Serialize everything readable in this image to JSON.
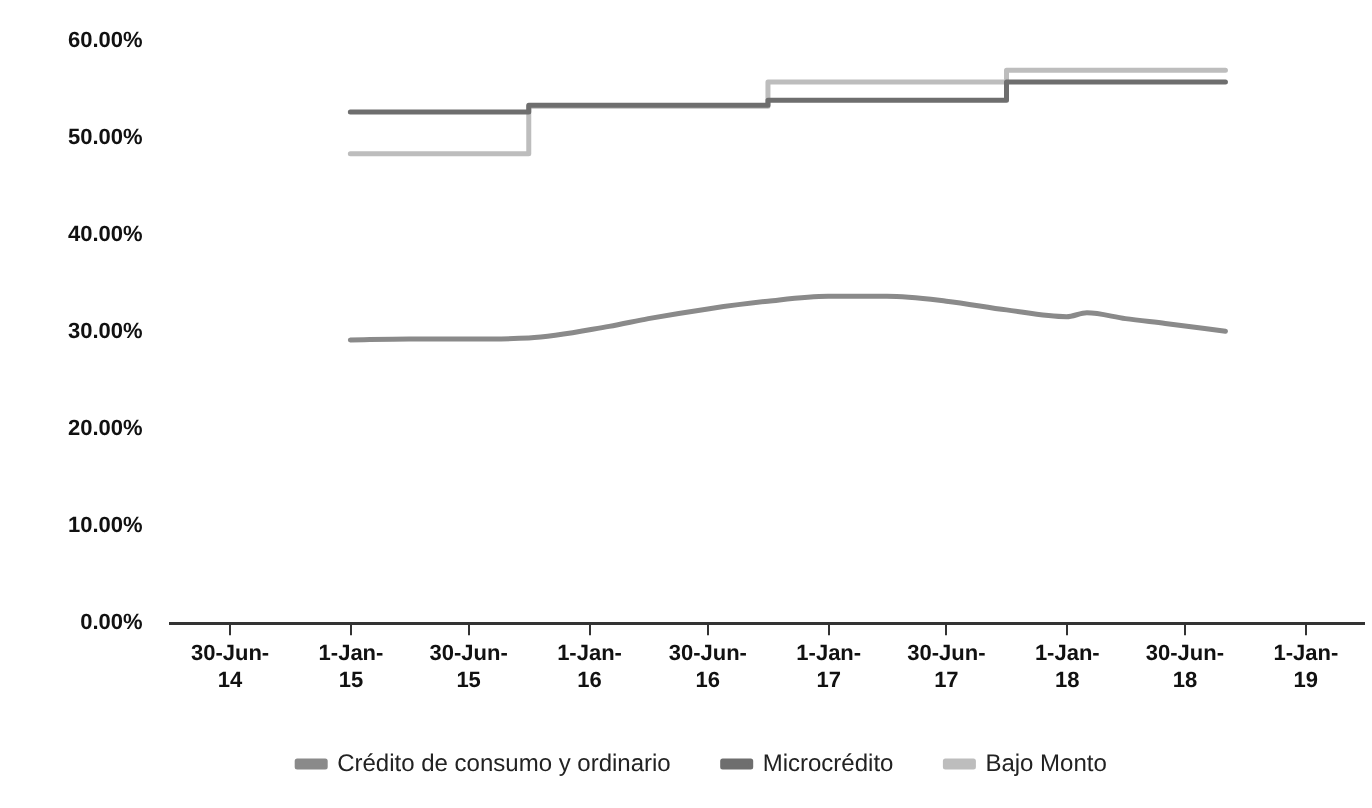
{
  "chart_data": {
    "type": "line",
    "xlim": [
      "2014-03-31",
      "2019-03-31"
    ],
    "xticks": [
      {
        "value": "2014-06-30",
        "label": "30-Jun-14"
      },
      {
        "value": "2015-01-01",
        "label": "1-Jan-15"
      },
      {
        "value": "2015-06-30",
        "label": "30-Jun-15"
      },
      {
        "value": "2016-01-01",
        "label": "1-Jan-16"
      },
      {
        "value": "2016-06-30",
        "label": "30-Jun-16"
      },
      {
        "value": "2017-01-01",
        "label": "1-Jan-17"
      },
      {
        "value": "2017-06-30",
        "label": "30-Jun-17"
      },
      {
        "value": "2018-01-01",
        "label": "1-Jan-18"
      },
      {
        "value": "2018-06-30",
        "label": "30-Jun-18"
      },
      {
        "value": "2019-01-01",
        "label": "1-Jan-19"
      }
    ],
    "ylim": [
      0,
      60
    ],
    "yticks": [
      {
        "value": 0,
        "label": "0.00%"
      },
      {
        "value": 10,
        "label": "10.00%"
      },
      {
        "value": 20,
        "label": "20.00%"
      },
      {
        "value": 30,
        "label": "30.00%"
      },
      {
        "value": 40,
        "label": "40.00%"
      },
      {
        "value": 50,
        "label": "50.00%"
      },
      {
        "value": 60,
        "label": "60.00%"
      }
    ],
    "grid": false,
    "legend": "bottom",
    "marker": "none",
    "line_style": "solid",
    "series": [
      {
        "name": "Crédito de consumo y ordinario",
        "color": "#8a8a8a",
        "x": [
          "2014-12-31",
          "2015-03-31",
          "2015-06-30",
          "2015-09-30",
          "2016-01-31",
          "2016-03-31",
          "2016-06-30",
          "2016-09-30",
          "2016-12-31",
          "2017-03-31",
          "2017-06-30",
          "2017-09-30",
          "2017-12-31",
          "2018-01-31",
          "2018-03-31",
          "2018-05-31",
          "2018-08-31"
        ],
        "values": [
          29.2,
          29.3,
          29.3,
          29.4,
          30.6,
          31.4,
          32.4,
          33.2,
          33.7,
          33.7,
          33.2,
          32.3,
          31.6,
          32.0,
          31.4,
          30.9,
          30.1
        ]
      },
      {
        "name": "Microcrédito",
        "type": "step",
        "color": "#6e6e6e",
        "x": [
          "2014-12-31",
          "2015-09-30",
          "2016-09-30",
          "2017-09-30",
          "2018-08-31"
        ],
        "values": [
          52.7,
          53.4,
          53.9,
          55.8,
          55.8
        ]
      },
      {
        "name": "Bajo Monto",
        "type": "step",
        "color": "#bdbdbd",
        "x": [
          "2014-12-31",
          "2015-09-30",
          "2016-09-30",
          "2017-09-30",
          "2018-08-31"
        ],
        "values": [
          48.4,
          53.3,
          55.8,
          57.0,
          57.0
        ]
      }
    ]
  }
}
